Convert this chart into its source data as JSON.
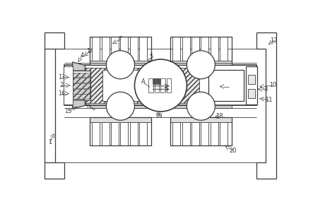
{
  "bg_color": "#ffffff",
  "lc": "#3a3a3a",
  "fig_w": 4.43,
  "fig_h": 2.96,
  "hatch_gray": "#bbbbbb",
  "fin_fill": "#f8f8f8",
  "body_hatch_fill": "#e8e8e8"
}
